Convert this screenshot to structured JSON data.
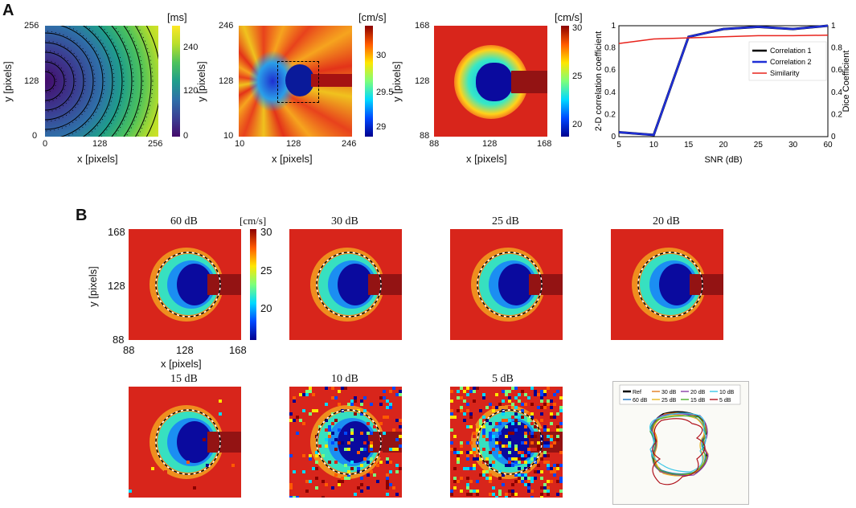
{
  "panel_labels": {
    "a": "A",
    "b": "B"
  },
  "panelA": {
    "activation_map": {
      "colorbar_unit": "[ms]",
      "colorbar_ticks": [
        "240",
        "120",
        "0"
      ],
      "x_ticks": [
        "0",
        "128",
        "256"
      ],
      "y_ticks": [
        "256",
        "128",
        "0"
      ],
      "xlabel": "x [pixels]",
      "ylabel": "y [pixels]"
    },
    "velocity_map": {
      "colorbar_unit": "[cm/s]",
      "colorbar_ticks": [
        "30",
        "29.5",
        "29"
      ],
      "x_ticks": [
        "10",
        "128",
        "246"
      ],
      "y_ticks": [
        "246",
        "128",
        "10"
      ],
      "xlabel": "x [pixels]",
      "ylabel": "y [pixels]"
    },
    "velocity_zoom": {
      "colorbar_unit": "[cm/s]",
      "colorbar_ticks": [
        "30",
        "25",
        "20"
      ],
      "x_ticks": [
        "88",
        "128",
        "168"
      ],
      "y_ticks": [
        "168",
        "128",
        "88"
      ],
      "xlabel": "x [pixels]",
      "ylabel": "y [pixels]"
    }
  },
  "chart_data": {
    "type": "line",
    "xlabel": "SNR (dB)",
    "ylabel": "2-D correlation coefficient",
    "ylabel_right": "Dice Coefficient",
    "categories": [
      "5",
      "10",
      "15",
      "20",
      "25",
      "30",
      "60"
    ],
    "y_ticks": [
      "0",
      "0.2",
      "0.4",
      "0.6",
      "0.8",
      "1"
    ],
    "y2_ticks": [
      "0",
      "0.2",
      "0.4",
      "0.6",
      "0.8",
      "1"
    ],
    "ylim": [
      0,
      1
    ],
    "legend_position": "right",
    "series": [
      {
        "name": "Correlation 1",
        "color": "#000000",
        "values": [
          0.04,
          0.015,
          0.9,
          0.97,
          0.99,
          0.97,
          1.0
        ]
      },
      {
        "name": "Correlation 2",
        "color": "#1f2fd6",
        "values": [
          0.04,
          0.015,
          0.9,
          0.97,
          0.99,
          0.97,
          1.0
        ]
      },
      {
        "name": "Similarity",
        "color": "#e8231c",
        "values": [
          0.84,
          0.88,
          0.89,
          0.9,
          0.91,
          0.91,
          0.915
        ]
      }
    ]
  },
  "panelB": {
    "colorbar_unit": "[cm/s]",
    "colorbar_ticks": [
      "30",
      "25",
      "20"
    ],
    "x_ticks": [
      "88",
      "128",
      "168"
    ],
    "y_ticks": [
      "168",
      "128",
      "88"
    ],
    "xlabel": "x [pixels]",
    "ylabel": "y [pixels]",
    "maps": [
      {
        "title": "60 dB",
        "noise": 0
      },
      {
        "title": "30 dB",
        "noise": 0
      },
      {
        "title": "25 dB",
        "noise": 0
      },
      {
        "title": "20 dB",
        "noise": 0
      },
      {
        "title": "15 dB",
        "noise": 0.02
      },
      {
        "title": "10 dB",
        "noise": 0.45
      },
      {
        "title": "5 dB",
        "noise": 0.95
      }
    ],
    "contour_legend": [
      {
        "name": "Ref",
        "color": "#000000"
      },
      {
        "name": "30 dB",
        "color": "#e07b20"
      },
      {
        "name": "20 dB",
        "color": "#8a3fa6"
      },
      {
        "name": "10 dB",
        "color": "#3cc7e8"
      },
      {
        "name": "60 dB",
        "color": "#1f77c4"
      },
      {
        "name": "25 dB",
        "color": "#e8b520"
      },
      {
        "name": "15 dB",
        "color": "#4caf2a"
      },
      {
        "name": "5 dB",
        "color": "#b0121c"
      }
    ]
  }
}
